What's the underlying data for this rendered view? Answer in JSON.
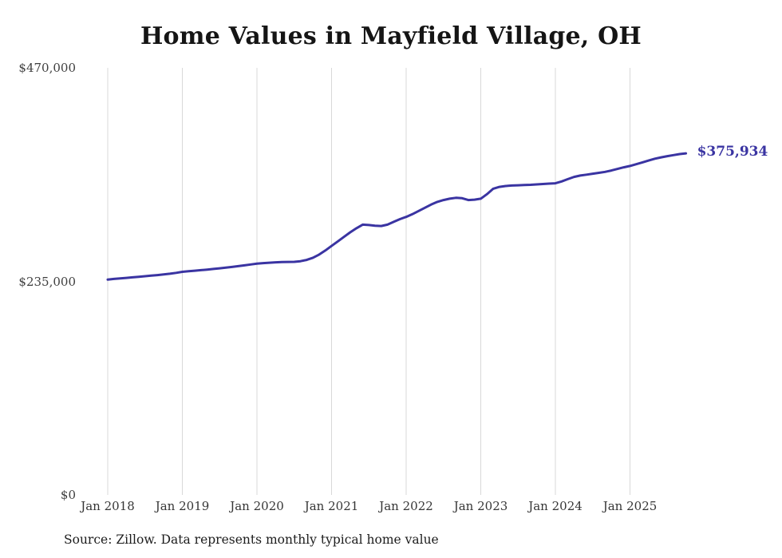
{
  "chart_data": {
    "type": "line",
    "title": "Home Values in Mayfield Village, OH",
    "xlabel": "",
    "ylabel": "",
    "ylim": [
      0,
      470000
    ],
    "grid": "vertical-only",
    "line_color": "#3a34a2",
    "grid_color": "#d8d8d8",
    "end_label": "$375,934",
    "latest_value": 375934,
    "y_ticks": [
      {
        "label": "$470,000",
        "value": 470000
      },
      {
        "label": "$235,000",
        "value": 235000
      },
      {
        "label": "$0",
        "value": 0
      }
    ],
    "x_ticks": [
      {
        "label": "Jan 2018",
        "month_index": 0
      },
      {
        "label": "Jan 2019",
        "month_index": 12
      },
      {
        "label": "Jan 2020",
        "month_index": 24
      },
      {
        "label": "Jan 2021",
        "month_index": 36
      },
      {
        "label": "Jan 2022",
        "month_index": 48
      },
      {
        "label": "Jan 2023",
        "month_index": 60
      },
      {
        "label": "Jan 2024",
        "month_index": 72
      },
      {
        "label": "Jan 2025",
        "month_index": 84
      }
    ],
    "x_start": "Jan 2018",
    "x_frequency": "monthly",
    "series": [
      {
        "name": "Typical home value",
        "values": [
          237000,
          237700,
          238300,
          238900,
          239500,
          240100,
          240700,
          241300,
          241900,
          242600,
          243400,
          244400,
          245500,
          246200,
          246800,
          247400,
          248000,
          248700,
          249400,
          250100,
          250900,
          251800,
          252700,
          253600,
          254500,
          255100,
          255600,
          256000,
          256300,
          256400,
          256500,
          257200,
          258600,
          261000,
          264500,
          269000,
          274000,
          279000,
          284000,
          289000,
          293500,
          297500,
          297000,
          296200,
          296000,
          297500,
          300500,
          303500,
          306000,
          309000,
          312500,
          316000,
          319500,
          322500,
          324500,
          326000,
          327000,
          326500,
          324500,
          325000,
          326000,
          331000,
          337000,
          339000,
          340000,
          340500,
          340800,
          341000,
          341300,
          341700,
          342200,
          342600,
          343000,
          345000,
          347500,
          350000,
          351500,
          352500,
          353500,
          354500,
          355500,
          357000,
          358800,
          360500,
          362000,
          364000,
          366000,
          368000,
          370000,
          371500,
          372800,
          374000,
          375100,
          375934
        ]
      }
    ]
  },
  "footer": {
    "source": "Source: Zillow. Data represents monthly typical home value"
  }
}
